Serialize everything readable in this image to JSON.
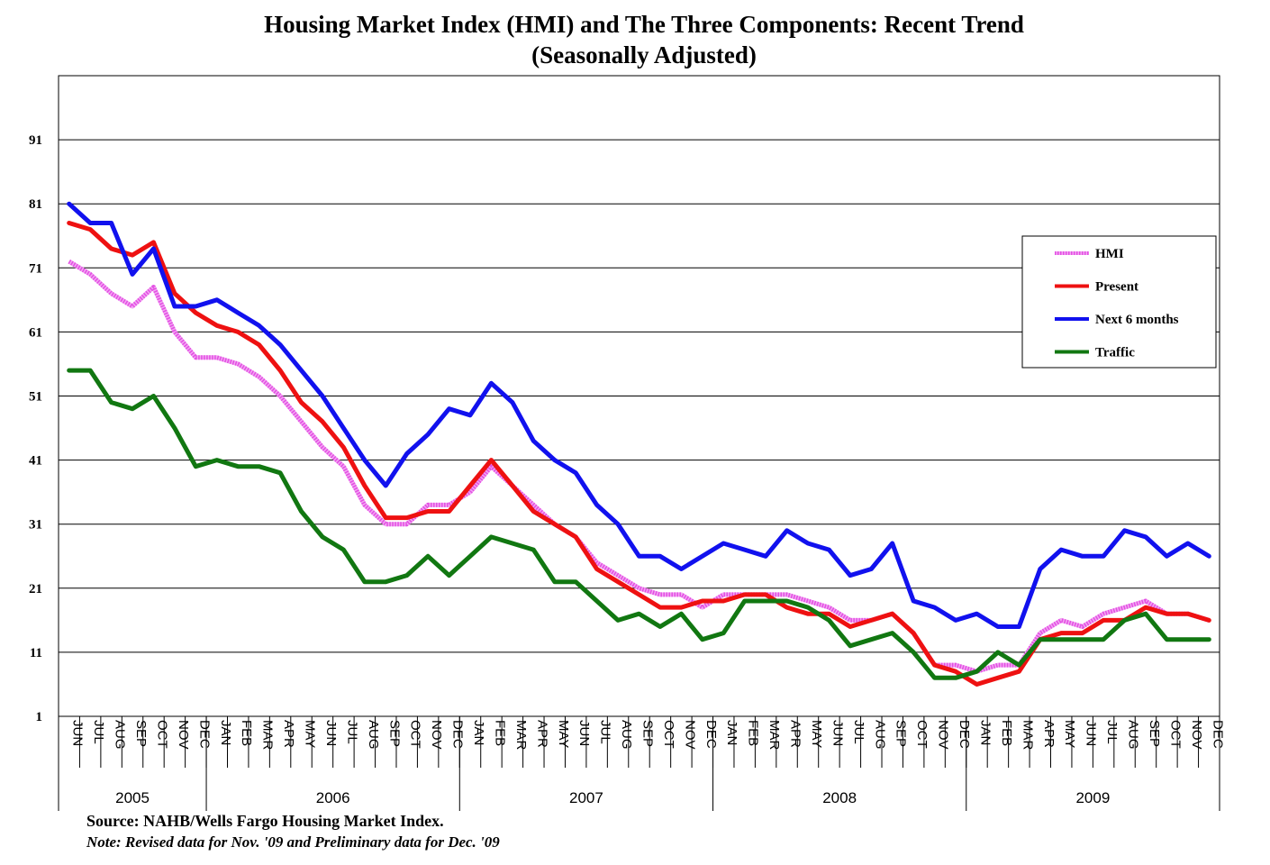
{
  "chart_data": {
    "type": "line",
    "title": "Housing Market Index (HMI) and The Three Components: Recent Trend",
    "subtitle": "(Seasonally Adjusted)",
    "xlabel": "",
    "ylabel": "",
    "ylim": [
      1,
      101
    ],
    "yticks": [
      1,
      11,
      21,
      31,
      41,
      51,
      61,
      71,
      81,
      91
    ],
    "grid": true,
    "legend_position": "right",
    "months": [
      "JUN",
      "JUL",
      "AUG",
      "SEP",
      "OCT",
      "NOV",
      "DEC",
      "JAN",
      "FEB",
      "MAR",
      "APR",
      "MAY",
      "JUN",
      "JUL",
      "AUG",
      "SEP",
      "OCT",
      "NOV",
      "DEC",
      "JAN",
      "FEB",
      "MAR",
      "APR",
      "MAY",
      "JUN",
      "JUL",
      "AUG",
      "SEP",
      "OCT",
      "NOV",
      "DEC",
      "JAN",
      "FEB",
      "MAR",
      "APR",
      "MAY",
      "JUN",
      "JUL",
      "AUG",
      "SEP",
      "OCT",
      "NOV",
      "DEC",
      "JAN",
      "FEB",
      "MAR",
      "APR",
      "MAY",
      "JUN",
      "JUL",
      "AUG",
      "SEP",
      "OCT",
      "NOV",
      "DEC"
    ],
    "years": [
      {
        "label": "2005",
        "months": 7
      },
      {
        "label": "2006",
        "months": 12
      },
      {
        "label": "2007",
        "months": 12
      },
      {
        "label": "2008",
        "months": 12
      },
      {
        "label": "2009",
        "months": 12
      }
    ],
    "series": [
      {
        "name": "HMI",
        "color": "#e34fe3",
        "style": "dotted",
        "values": [
          72,
          70,
          67,
          65,
          68,
          61,
          57,
          57,
          56,
          54,
          51,
          47,
          43,
          40,
          34,
          31,
          31,
          34,
          34,
          36,
          40,
          37,
          34,
          31,
          29,
          25,
          23,
          21,
          20,
          20,
          18,
          20,
          20,
          20,
          20,
          19,
          18,
          16,
          16,
          17,
          14,
          9,
          9,
          8,
          9,
          9,
          14,
          16,
          15,
          17,
          18,
          19,
          17,
          17,
          16
        ]
      },
      {
        "name": "Present",
        "color": "#ee1111",
        "style": "solid",
        "values": [
          78,
          77,
          74,
          73,
          75,
          67,
          64,
          62,
          61,
          59,
          55,
          50,
          47,
          43,
          37,
          32,
          32,
          33,
          33,
          37,
          41,
          37,
          33,
          31,
          29,
          24,
          22,
          20,
          18,
          18,
          19,
          19,
          20,
          20,
          18,
          17,
          17,
          15,
          16,
          17,
          14,
          9,
          8,
          6,
          7,
          8,
          13,
          14,
          14,
          16,
          16,
          18,
          17,
          17,
          16
        ]
      },
      {
        "name": "Next 6 months",
        "color": "#1111ee",
        "style": "solid",
        "values": [
          81,
          78,
          78,
          70,
          74,
          65,
          65,
          66,
          64,
          62,
          59,
          55,
          51,
          46,
          41,
          37,
          42,
          45,
          49,
          48,
          53,
          50,
          44,
          41,
          39,
          34,
          31,
          26,
          26,
          24,
          26,
          28,
          27,
          26,
          30,
          28,
          27,
          23,
          24,
          28,
          19,
          18,
          16,
          17,
          15,
          15,
          24,
          27,
          26,
          26,
          30,
          29,
          26,
          28,
          26
        ]
      },
      {
        "name": "Traffic",
        "color": "#117711",
        "style": "solid",
        "values": [
          55,
          55,
          50,
          49,
          51,
          46,
          40,
          41,
          40,
          40,
          39,
          33,
          29,
          27,
          22,
          22,
          23,
          26,
          23,
          26,
          29,
          28,
          27,
          22,
          22,
          19,
          16,
          17,
          15,
          17,
          13,
          14,
          19,
          19,
          19,
          18,
          16,
          12,
          13,
          14,
          11,
          7,
          7,
          8,
          11,
          9,
          13,
          13,
          13,
          13,
          16,
          17,
          13,
          13,
          13
        ]
      }
    ]
  },
  "footer": {
    "source": "Source: NAHB/Wells Fargo Housing Market Index.",
    "note": "Note: Revised data for Nov. '09 and Preliminary data for Dec. '09"
  }
}
